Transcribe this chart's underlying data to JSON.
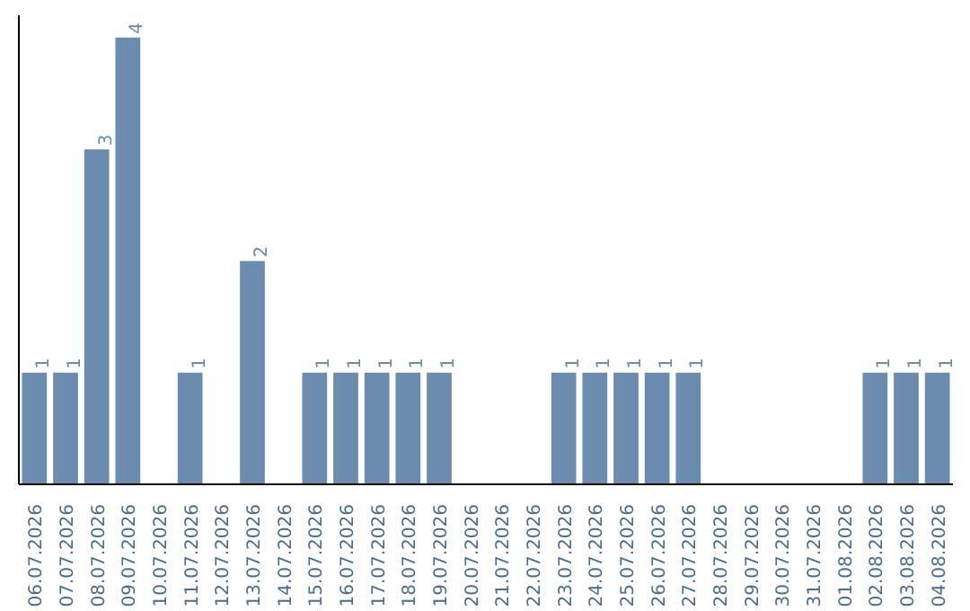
{
  "chart_data": {
    "type": "bar",
    "categories": [
      "06.07.2026",
      "07.07.2026",
      "08.07.2026",
      "09.07.2026",
      "10.07.2026",
      "11.07.2026",
      "12.07.2026",
      "13.07.2026",
      "14.07.2026",
      "15.07.2026",
      "16.07.2026",
      "17.07.2026",
      "18.07.2026",
      "19.07.2026",
      "20.07.2026",
      "21.07.2026",
      "22.07.2026",
      "23.07.2026",
      "24.07.2026",
      "25.07.2026",
      "26.07.2026",
      "27.07.2026",
      "28.07.2026",
      "29.07.2026",
      "30.07.2026",
      "31.07.2026",
      "01.08.2026",
      "02.08.2026",
      "03.08.2026",
      "04.08.2026"
    ],
    "values": [
      1,
      1,
      3,
      4,
      0,
      1,
      0,
      2,
      0,
      1,
      1,
      1,
      1,
      1,
      0,
      0,
      0,
      1,
      1,
      1,
      1,
      1,
      0,
      0,
      0,
      0,
      0,
      1,
      1,
      1
    ],
    "value_labels": [
      "1",
      "1",
      "3",
      "4",
      null,
      "1",
      null,
      "2",
      null,
      "1",
      "1",
      "1",
      "1",
      "1",
      null,
      null,
      null,
      "1",
      "1",
      "1",
      "1",
      "1",
      null,
      null,
      null,
      null,
      null,
      "1",
      "1",
      "1"
    ],
    "color": "#6b8cae",
    "ylim": [
      0,
      4.2
    ],
    "grid": false
  }
}
